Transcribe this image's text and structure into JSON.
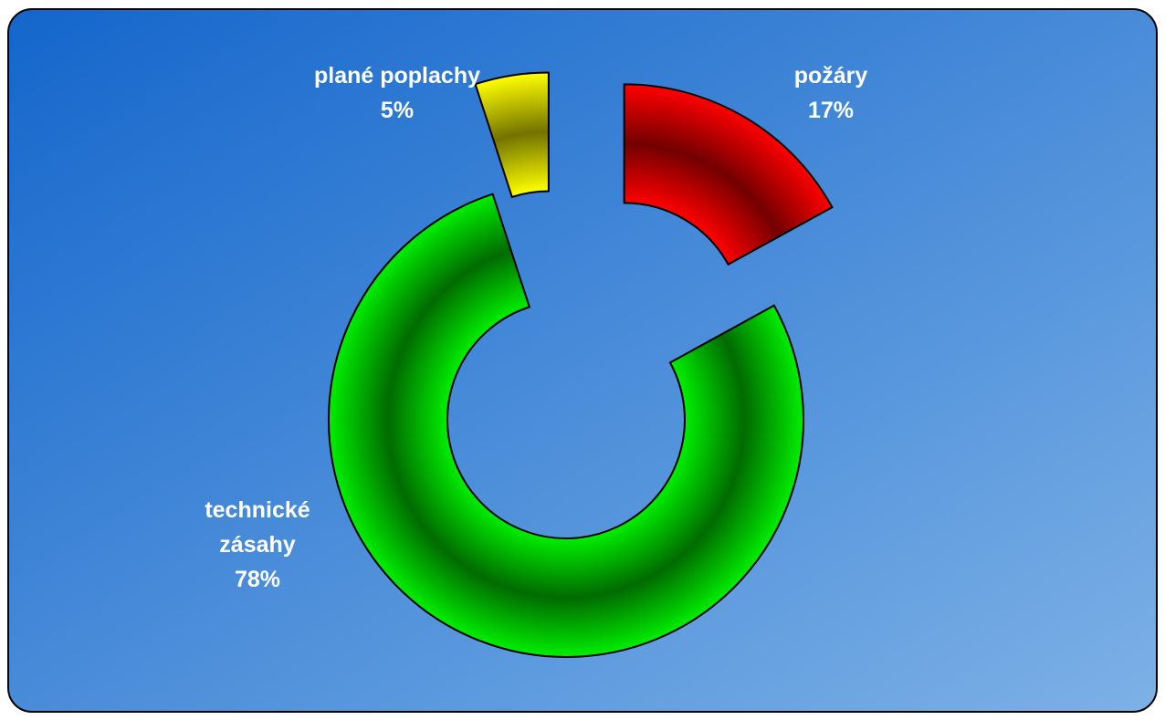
{
  "chart_data": {
    "type": "donut",
    "categories": [
      "požáry",
      "technické zásahy",
      "plané poplachy"
    ],
    "values": [
      17,
      78,
      5
    ],
    "value_labels": [
      "17%",
      "78%",
      "5%"
    ],
    "colors": [
      "#ff0000",
      "#00ee00",
      "#ffff00"
    ]
  }
}
